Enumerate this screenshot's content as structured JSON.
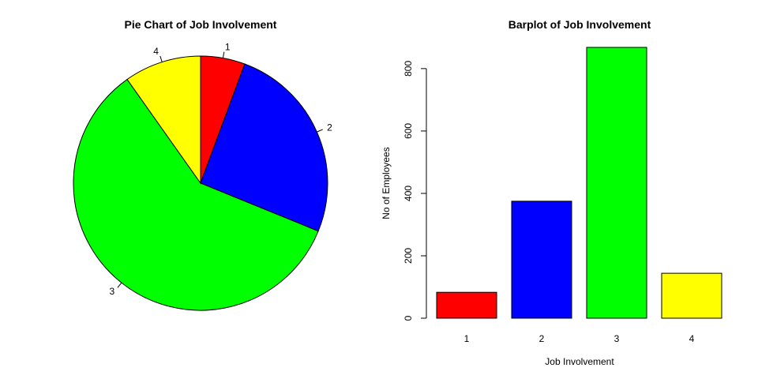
{
  "chart_data": [
    {
      "type": "pie",
      "title": "Pie Chart of Job Involvement",
      "categories": [
        "1",
        "2",
        "3",
        "4"
      ],
      "values": [
        83,
        375,
        868,
        144
      ],
      "colors": [
        "#ff0000",
        "#0000ff",
        "#00ff00",
        "#ffff00"
      ]
    },
    {
      "type": "bar",
      "title": "Barplot of Job Involvement",
      "categories": [
        "1",
        "2",
        "3",
        "4"
      ],
      "values": [
        83,
        375,
        868,
        144
      ],
      "colors": [
        "#ff0000",
        "#0000ff",
        "#00ff00",
        "#ffff00"
      ],
      "xlabel": "Job Involvement",
      "ylabel": "No of Employees",
      "yticks": [
        0,
        200,
        400,
        600,
        800
      ],
      "ylim": [
        0,
        868
      ],
      "grid": false
    }
  ]
}
